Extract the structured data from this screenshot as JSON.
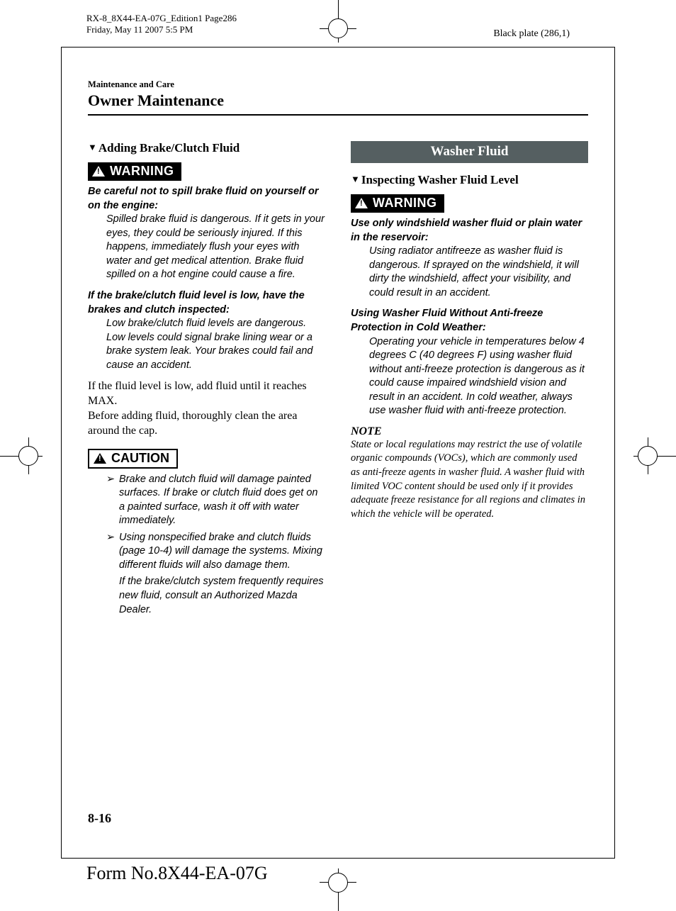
{
  "meta": {
    "file_line": "RX-8_8X44-EA-07G_Edition1 Page286",
    "timestamp": "Friday, May 11 2007 5:5 PM",
    "plate": "Black plate (286,1)",
    "form_no": "Form No.8X44-EA-07G",
    "page_num": "8-16"
  },
  "header": {
    "label": "Maintenance and Care",
    "title": "Owner Maintenance"
  },
  "badges": {
    "warning": "WARNING",
    "caution": "CAUTION"
  },
  "left": {
    "subhead": "Adding Brake/Clutch Fluid",
    "w1_title": "Be careful not to spill brake fluid on yourself or on the engine:",
    "w1_body": "Spilled brake fluid is dangerous. If it gets in your eyes, they could be seriously injured. If this happens, immediately flush your eyes with water and get medical attention. Brake fluid spilled on a hot engine could cause a fire.",
    "w2_title": "If the brake/clutch fluid level is low, have the brakes and clutch inspected:",
    "w2_body": "Low brake/clutch fluid levels are dangerous. Low levels could signal brake lining wear or a brake system leak. Your brakes could fail and cause an accident.",
    "body1": "If the fluid level is low, add fluid until it reaches MAX.",
    "body2": "Before adding fluid, thoroughly clean the area around the cap.",
    "c1": "Brake and clutch fluid will damage painted surfaces. If brake or clutch fluid does get on a painted surface, wash it off with water immediately.",
    "c2": "Using nonspecified brake and clutch fluids (page 10-4) will damage the systems. Mixing different fluids will also damage them.",
    "c2_tail": "If the brake/clutch system frequently requires new fluid, consult an Authorized Mazda Dealer."
  },
  "right": {
    "inset_title": "Washer Fluid",
    "subhead": "Inspecting Washer Fluid Level",
    "w1_title": "Use only windshield washer fluid or plain water in the reservoir:",
    "w1_body": "Using radiator antifreeze as washer fluid is dangerous. If sprayed on the windshield, it will dirty the windshield, affect your visibility, and could result in an accident.",
    "w2_title": "Using Washer Fluid Without Anti-freeze Protection in Cold Weather:",
    "w2_body": "Operating your vehicle in temperatures below 4 degrees C (40 degrees F) using washer fluid without anti-freeze protection is dangerous as it could cause impaired windshield vision and result in an accident. In cold weather, always use washer fluid with anti-freeze protection.",
    "note_head": "NOTE",
    "note_body": "State or local regulations may restrict the use of volatile organic compounds (VOCs), which are commonly used as anti-freeze agents in washer fluid. A washer fluid with limited VOC content should be used only if it provides adequate freeze resistance for all regions and climates in which the vehicle will be operated."
  },
  "style": {
    "inset_bg": "#555f61",
    "text_color": "#000000",
    "body_font": "Times New Roman",
    "italic_font": "Verdana"
  }
}
